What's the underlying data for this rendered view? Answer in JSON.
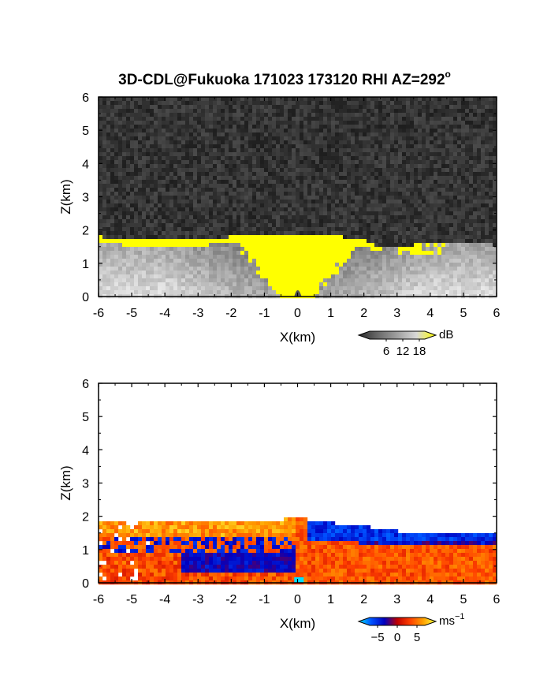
{
  "title": "3D-CDL@Fukuoka 171023 173120 RHI AZ=292",
  "title_superscript": "o",
  "chart_data": [
    {
      "type": "heatmap",
      "panel": "top",
      "xlabel": "X(km)",
      "ylabel": "Z(km)",
      "xlim": [
        -6,
        6
      ],
      "ylim": [
        0,
        6
      ],
      "xticks": [
        "-6",
        "-5",
        "-4",
        "-3",
        "-2",
        "-1",
        "0",
        "1",
        "2",
        "3",
        "4",
        "5",
        "6"
      ],
      "yticks": [
        "0",
        "1",
        "2",
        "3",
        "4",
        "5",
        "6"
      ],
      "colorbar": {
        "unit": "dB",
        "ticks": [
          "6",
          "12",
          "18"
        ],
        "range": [
          0,
          20
        ],
        "colormap": [
          "#2a2a2a",
          "#6a6a6a",
          "#a0a0a0",
          "#d8d8d8",
          "#ffff00"
        ]
      },
      "boundary_layer_top_km": [
        [
          -6,
          1.8
        ],
        [
          -5,
          1.7
        ],
        [
          -4,
          1.7
        ],
        [
          -3,
          1.7
        ],
        [
          -2,
          1.8
        ],
        [
          -1,
          1.85
        ],
        [
          0,
          1.9
        ],
        [
          1,
          1.85
        ],
        [
          2,
          1.7
        ],
        [
          2.5,
          1.5
        ],
        [
          3,
          1.5
        ],
        [
          4,
          1.6
        ],
        [
          5,
          1.6
        ],
        [
          6,
          1.55
        ]
      ],
      "background": "#3a3a3a",
      "saturated_color": "#ffff00"
    },
    {
      "type": "heatmap",
      "panel": "bottom",
      "xlabel": "X(km)",
      "ylabel": "Z(km)",
      "xlim": [
        -6,
        6
      ],
      "ylim": [
        0,
        6
      ],
      "xticks": [
        "-6",
        "-5",
        "-4",
        "-3",
        "-2",
        "-1",
        "0",
        "1",
        "2",
        "3",
        "4",
        "5",
        "6"
      ],
      "yticks": [
        "0",
        "1",
        "2",
        "3",
        "4",
        "5",
        "6"
      ],
      "colorbar": {
        "unit": "ms",
        "unit_superscript": "−1",
        "ticks": [
          "−5",
          "0",
          "5"
        ],
        "range": [
          -7,
          7
        ],
        "colormap": [
          "#00e0ff",
          "#0050ff",
          "#0000c0",
          "#c00000",
          "#ff4000",
          "#ffa000",
          "#ffff40"
        ]
      },
      "top_boundary_km": [
        [
          -6,
          1.85
        ],
        [
          -5,
          1.85
        ],
        [
          -4,
          1.85
        ],
        [
          -3,
          1.85
        ],
        [
          -2,
          1.85
        ],
        [
          -1,
          1.85
        ],
        [
          0,
          1.95
        ],
        [
          1,
          1.8
        ],
        [
          2,
          1.7
        ],
        [
          3,
          1.55
        ],
        [
          4,
          1.55
        ],
        [
          5,
          1.5
        ],
        [
          6,
          1.5
        ]
      ]
    }
  ]
}
